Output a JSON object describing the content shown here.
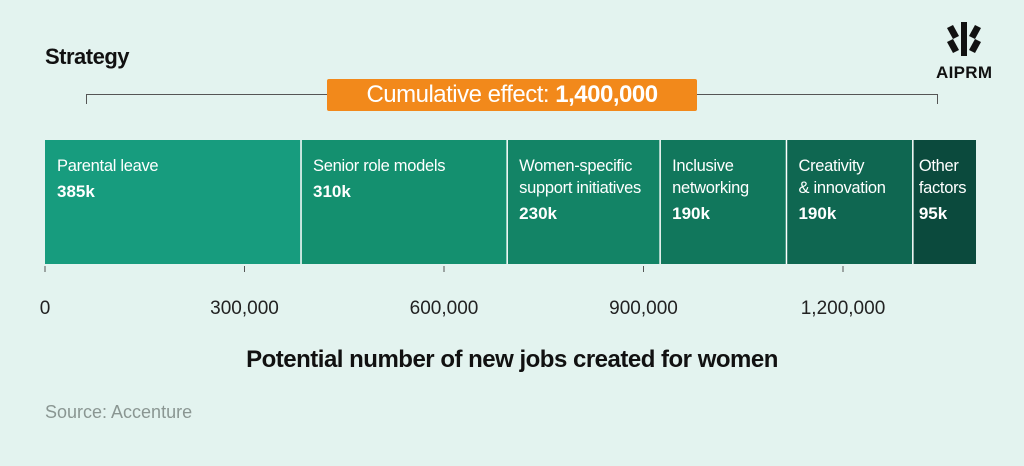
{
  "header": {
    "title": "Strategy",
    "logo_text": "AIPRM"
  },
  "cumulative": {
    "label": "Cumulative effect: ",
    "value": "1,400,000"
  },
  "chart_data": {
    "type": "bar",
    "orientation": "horizontal-stacked",
    "title": "Strategy",
    "xlabel": "Potential number of new jobs created for women",
    "xlim": [
      0,
      1400000
    ],
    "xticks": [
      0,
      300000,
      600000,
      900000,
      1200000
    ],
    "xtick_labels": [
      "0",
      "300,000",
      "600,000",
      "900,000",
      "1,200,000"
    ],
    "total_label": "Cumulative effect: 1,400,000",
    "series": [
      {
        "name": "Parental leave",
        "label_lines": [
          "Parental leave"
        ],
        "value": 385000,
        "value_label": "385k",
        "color": "#179c7e"
      },
      {
        "name": "Senior role models",
        "label_lines": [
          "Senior role models"
        ],
        "value": 310000,
        "value_label": "310k",
        "color": "#14906f"
      },
      {
        "name": "Women-specific support initiatives",
        "label_lines": [
          "Women-specific",
          "support initiatives"
        ],
        "value": 230000,
        "value_label": "230k",
        "color": "#138466"
      },
      {
        "name": "Inclusive networking",
        "label_lines": [
          "Inclusive",
          "networking"
        ],
        "value": 190000,
        "value_label": "190k",
        "color": "#11775c"
      },
      {
        "name": "Creativity & innovation",
        "label_lines": [
          "Creativity",
          "& innovation"
        ],
        "value": 190000,
        "value_label": "190k",
        "color": "#0f6751"
      },
      {
        "name": "Other factors",
        "label_lines": [
          "Other",
          "factors"
        ],
        "value": 95000,
        "value_label": "95k",
        "color": "#0b4a3d"
      }
    ]
  },
  "source": "Source: Accenture"
}
